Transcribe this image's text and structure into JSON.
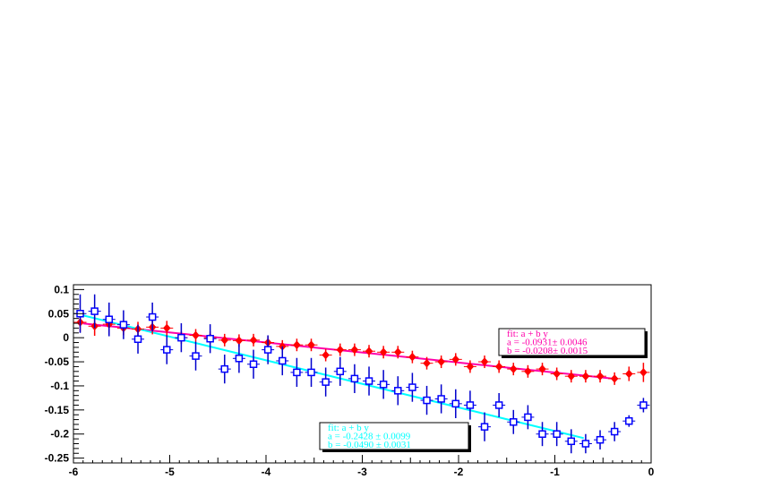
{
  "chart_data": {
    "type": "scatter",
    "title": "",
    "xlabel": "",
    "ylabel": "",
    "xlim": [
      -6,
      0
    ],
    "ylim": [
      -0.26,
      0.11
    ],
    "grid": false,
    "x_ticks": [
      -6,
      -5,
      -4,
      -3,
      -2,
      -1,
      0
    ],
    "x_tick_labels": [
      "-6",
      "-5",
      "-4",
      "-3",
      "-2",
      "-1",
      "0"
    ],
    "y_ticks": [
      0.1,
      0.05,
      0,
      -0.05,
      -0.1,
      -0.15,
      -0.2,
      -0.25
    ],
    "y_tick_labels": [
      "0.1",
      "0.05",
      "0",
      "-0.05",
      "-0.1",
      "-0.15",
      "-0.2",
      "-0.25"
    ],
    "series": [
      {
        "marker": "filled-diamond",
        "color": "#ff0000",
        "error_color": "#ff0000",
        "x": [
          -5.93,
          -5.78,
          -5.63,
          -5.48,
          -5.33,
          -5.18,
          -5.03,
          -4.88,
          -4.73,
          -4.58,
          -4.43,
          -4.28,
          -4.13,
          -3.98,
          -3.83,
          -3.68,
          -3.53,
          -3.38,
          -3.23,
          -3.08,
          -2.93,
          -2.78,
          -2.63,
          -2.48,
          -2.33,
          -2.18,
          -2.03,
          -1.88,
          -1.73,
          -1.58,
          -1.43,
          -1.28,
          -1.13,
          -0.98,
          -0.83,
          -0.68,
          -0.53,
          -0.38,
          -0.23,
          -0.08
        ],
        "y": [
          0.032,
          0.024,
          0.028,
          0.02,
          0.018,
          0.022,
          0.02,
          0.0,
          0.005,
          0.0,
          -0.005,
          -0.006,
          -0.005,
          -0.01,
          -0.018,
          -0.015,
          -0.015,
          -0.036,
          -0.025,
          -0.025,
          -0.028,
          -0.03,
          -0.03,
          -0.04,
          -0.053,
          -0.05,
          -0.045,
          -0.06,
          -0.05,
          -0.06,
          -0.065,
          -0.07,
          -0.065,
          -0.075,
          -0.08,
          -0.08,
          -0.08,
          -0.085,
          -0.075,
          -0.072
        ],
        "yerr": [
          0.02,
          0.02,
          0.02,
          0.015,
          0.015,
          0.015,
          0.015,
          0.013,
          0.013,
          0.013,
          0.013,
          0.013,
          0.013,
          0.013,
          0.013,
          0.013,
          0.013,
          0.013,
          0.013,
          0.013,
          0.013,
          0.013,
          0.013,
          0.013,
          0.013,
          0.013,
          0.013,
          0.013,
          0.013,
          0.013,
          0.013,
          0.013,
          0.013,
          0.013,
          0.013,
          0.013,
          0.013,
          0.013,
          0.015,
          0.02
        ]
      },
      {
        "marker": "open-square",
        "color": "#0000ff",
        "error_color": "#0000cc",
        "x": [
          -5.93,
          -5.78,
          -5.63,
          -5.48,
          -5.33,
          -5.18,
          -5.03,
          -4.88,
          -4.73,
          -4.58,
          -4.43,
          -4.28,
          -4.13,
          -3.98,
          -3.83,
          -3.68,
          -3.53,
          -3.38,
          -3.23,
          -3.08,
          -2.93,
          -2.78,
          -2.63,
          -2.48,
          -2.33,
          -2.18,
          -2.03,
          -1.88,
          -1.73,
          -1.58,
          -1.43,
          -1.28,
          -1.13,
          -0.98,
          -0.83,
          -0.68,
          -0.53,
          -0.38,
          -0.23,
          -0.08
        ],
        "y": [
          0.05,
          0.055,
          0.038,
          0.027,
          -0.003,
          0.043,
          -0.025,
          0.0,
          -0.038,
          -0.002,
          -0.065,
          -0.043,
          -0.055,
          -0.025,
          -0.048,
          -0.072,
          -0.072,
          -0.092,
          -0.07,
          -0.085,
          -0.09,
          -0.097,
          -0.11,
          -0.103,
          -0.13,
          -0.127,
          -0.137,
          -0.14,
          -0.185,
          -0.14,
          -0.175,
          -0.165,
          -0.2,
          -0.2,
          -0.215,
          -0.22,
          -0.212,
          -0.195,
          -0.173,
          -0.14
        ],
        "yerr": [
          0.04,
          0.035,
          0.035,
          0.03,
          0.03,
          0.03,
          0.03,
          0.03,
          0.03,
          0.03,
          0.03,
          0.03,
          0.03,
          0.03,
          0.03,
          0.03,
          0.03,
          0.03,
          0.03,
          0.03,
          0.03,
          0.03,
          0.03,
          0.03,
          0.03,
          0.03,
          0.03,
          0.03,
          0.03,
          0.025,
          0.025,
          0.025,
          0.025,
          0.025,
          0.025,
          0.02,
          0.02,
          0.02,
          0.012,
          0.015
        ]
      }
    ],
    "fits": [
      {
        "color": "#ff00aa",
        "x_range": [
          -5.9,
          -0.35
        ],
        "a": -0.0931,
        "b": -0.0208,
        "legend_placement": "right",
        "lines": [
          "fit: a + b y",
          "a = -0.0931± 0.0046",
          "b = -0.0208± 0.0015"
        ]
      },
      {
        "color": "#00ffff",
        "x_range": [
          -5.9,
          -0.7
        ],
        "a": -0.2428,
        "b": -0.049,
        "legend_placement": "bottom-center",
        "lines": [
          "fit: a + b y",
          "a = -0.2428 ± 0.0099",
          "b = -0.0490 ± 0.0031"
        ]
      }
    ]
  }
}
